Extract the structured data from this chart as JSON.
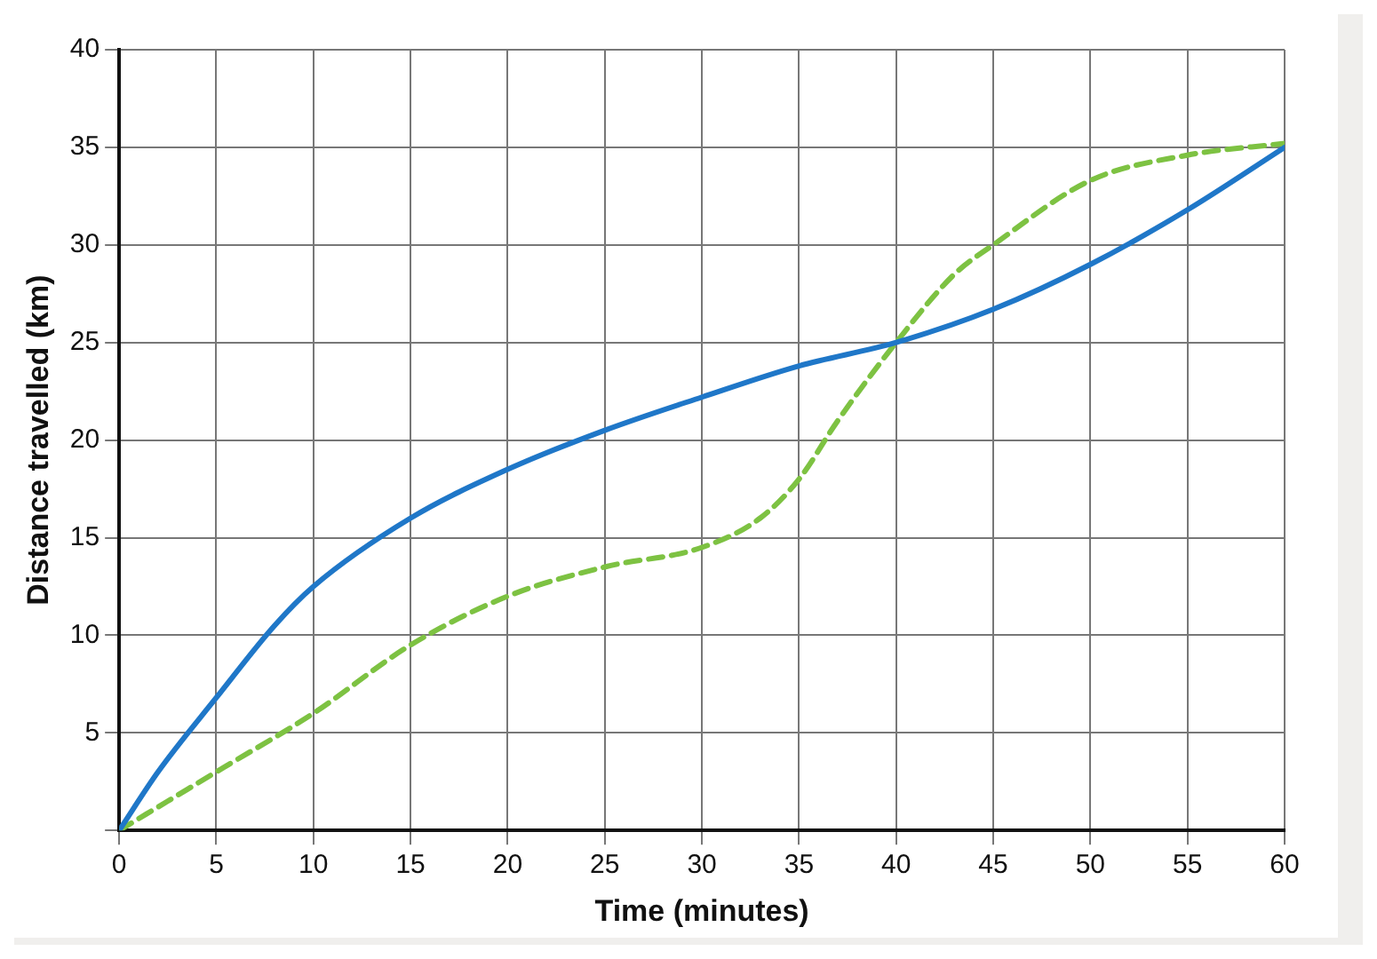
{
  "chart_data": {
    "type": "line",
    "xlabel": "Time (minutes)",
    "ylabel": "Distance travelled (km)",
    "xlim": [
      0,
      60
    ],
    "ylim": [
      0,
      40
    ],
    "xticks": [
      0,
      5,
      10,
      15,
      20,
      25,
      30,
      35,
      40,
      45,
      50,
      55,
      60
    ],
    "yticks": [
      {
        "value": 0,
        "label": null
      },
      5,
      10,
      15,
      20,
      25,
      30,
      35,
      40
    ],
    "grid": true,
    "marker": "none",
    "series": [
      {
        "color": "#1f77c8",
        "line_style": "solid",
        "x": [
          0,
          2,
          5,
          8,
          10,
          15,
          20,
          25,
          30,
          35,
          40,
          45,
          50,
          55,
          60
        ],
        "values": [
          0,
          3,
          6.8,
          10.5,
          12.5,
          16,
          18.5,
          20.5,
          22.2,
          23.8,
          25,
          26.7,
          29,
          31.8,
          35
        ]
      },
      {
        "color": "#7dc242",
        "line_style": "dashed",
        "x": [
          0,
          5,
          10,
          15,
          20,
          25,
          30,
          33,
          35,
          37,
          40,
          43,
          45,
          50,
          55,
          60
        ],
        "values": [
          0,
          3,
          6,
          9.5,
          12,
          13.5,
          14.5,
          16,
          18,
          21,
          25,
          28.5,
          30,
          33.3,
          34.6,
          35.2
        ]
      }
    ]
  }
}
